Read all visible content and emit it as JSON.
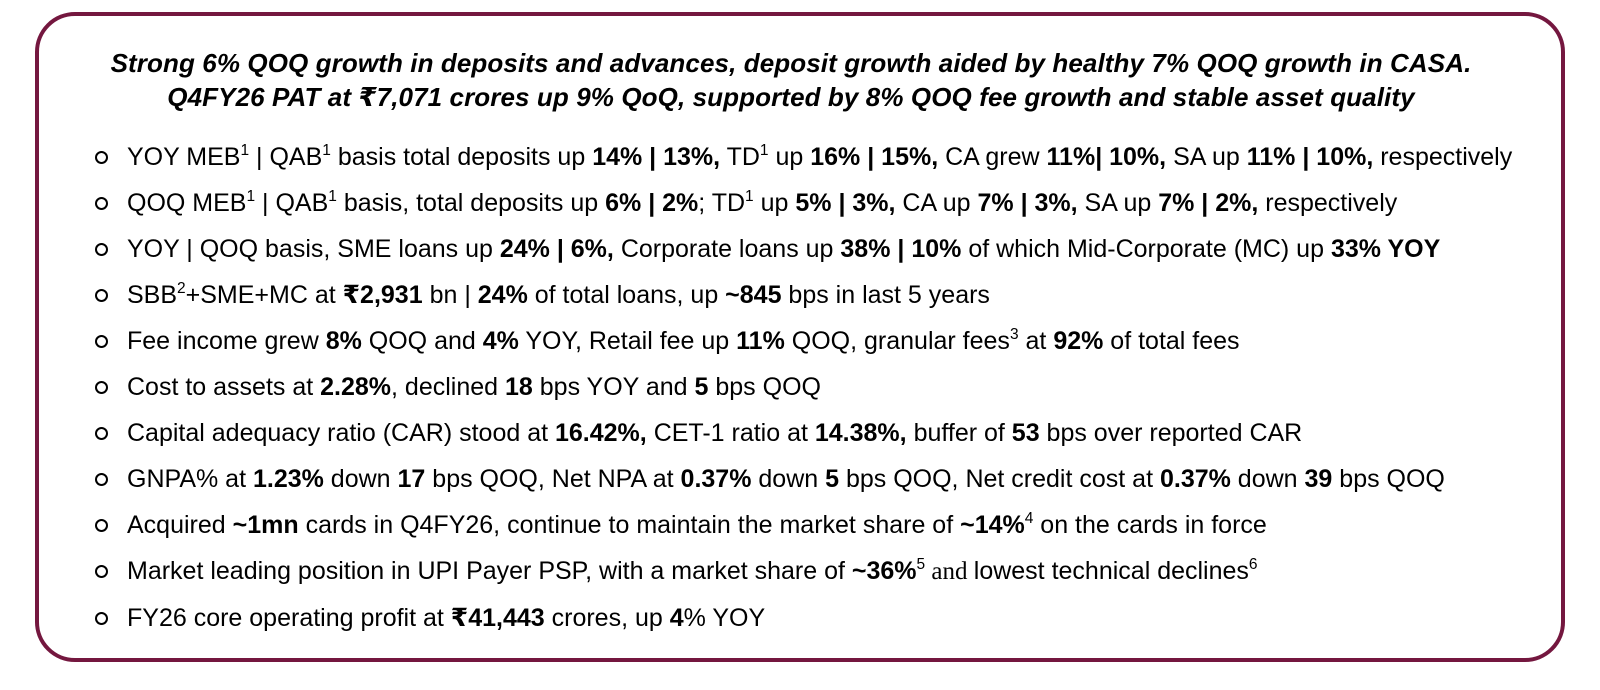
{
  "slide": {
    "border_color": "#74173f",
    "text_color": "#000000",
    "title": {
      "line1": "Strong 6% QOQ growth in deposits and advances, deposit growth aided by healthy 7% QOQ growth in CASA.",
      "line2": "Q4FY26 PAT at ₹7,071 crores up 9% QoQ, supported by 8% QOQ fee growth and stable asset quality"
    },
    "bullets": [
      {
        "segments": [
          {
            "t": "YOY MEB"
          },
          {
            "t": "1",
            "sup": true
          },
          {
            "t": " | QAB"
          },
          {
            "t": "1",
            "sup": true
          },
          {
            "t": " basis total deposits up "
          },
          {
            "t": "14% | 13%,",
            "b": true
          },
          {
            "t": " TD"
          },
          {
            "t": "1",
            "sup": true
          },
          {
            "t": " up "
          },
          {
            "t": "16% | 15%,",
            "b": true
          },
          {
            "t": " CA grew "
          },
          {
            "t": "11%| 10%,",
            "b": true
          },
          {
            "t": " SA up "
          },
          {
            "t": "11% | 10%,",
            "b": true
          },
          {
            "t": " respectively"
          }
        ]
      },
      {
        "segments": [
          {
            "t": "QOQ MEB"
          },
          {
            "t": "1",
            "sup": true
          },
          {
            "t": " | QAB"
          },
          {
            "t": "1",
            "sup": true
          },
          {
            "t": " basis, total deposits up "
          },
          {
            "t": "6% | 2%",
            "b": true
          },
          {
            "t": "; TD"
          },
          {
            "t": "1",
            "sup": true
          },
          {
            "t": " up "
          },
          {
            "t": "5% | 3%,",
            "b": true
          },
          {
            "t": " CA up "
          },
          {
            "t": "7% | 3%,",
            "b": true
          },
          {
            "t": " SA up "
          },
          {
            "t": "7% | 2%,",
            "b": true
          },
          {
            "t": " respectively"
          }
        ]
      },
      {
        "segments": [
          {
            "t": "YOY | QOQ basis, SME loans up "
          },
          {
            "t": "24% | 6%,",
            "b": true
          },
          {
            "t": " Corporate loans up "
          },
          {
            "t": "38% | 10%",
            "b": true
          },
          {
            "t": " of which Mid-Corporate (MC) up "
          },
          {
            "t": "33% YOY",
            "b": true
          }
        ]
      },
      {
        "segments": [
          {
            "t": "SBB"
          },
          {
            "t": "2",
            "sup": true
          },
          {
            "t": "+SME+MC at "
          },
          {
            "t": "₹2,931",
            "b": true
          },
          {
            "t": " bn | "
          },
          {
            "t": "24%",
            "b": true
          },
          {
            "t": " of total loans, up "
          },
          {
            "t": "~845",
            "b": true
          },
          {
            "t": " bps in last 5 years"
          }
        ]
      },
      {
        "segments": [
          {
            "t": "Fee income grew "
          },
          {
            "t": "8%",
            "b": true
          },
          {
            "t": " QOQ and "
          },
          {
            "t": "4%",
            "b": true
          },
          {
            "t": " YOY, Retail fee up "
          },
          {
            "t": "11%",
            "b": true
          },
          {
            "t": " QOQ, granular fees"
          },
          {
            "t": "3",
            "sup": true
          },
          {
            "t": " at "
          },
          {
            "t": "92%",
            "b": true
          },
          {
            "t": " of total fees"
          }
        ]
      },
      {
        "segments": [
          {
            "t": "Cost to assets at "
          },
          {
            "t": "2.28%",
            "b": true
          },
          {
            "t": ", declined "
          },
          {
            "t": "18",
            "b": true
          },
          {
            "t": " bps YOY and "
          },
          {
            "t": "5",
            "b": true
          },
          {
            "t": " bps QOQ"
          }
        ]
      },
      {
        "segments": [
          {
            "t": "Capital adequacy ratio (CAR) stood at "
          },
          {
            "t": "16.42%,",
            "b": true
          },
          {
            "t": " CET-1 ratio at "
          },
          {
            "t": "14.38%,",
            "b": true
          },
          {
            "t": " buffer of "
          },
          {
            "t": "53",
            "b": true
          },
          {
            "t": " bps over reported CAR"
          }
        ]
      },
      {
        "segments": [
          {
            "t": "GNPA% at "
          },
          {
            "t": "1.23%",
            "b": true
          },
          {
            "t": " down "
          },
          {
            "t": "17",
            "b": true
          },
          {
            "t": " bps QOQ, Net NPA at "
          },
          {
            "t": "0.37%",
            "b": true
          },
          {
            "t": " down "
          },
          {
            "t": "5",
            "b": true
          },
          {
            "t": " bps QOQ, Net credit cost at "
          },
          {
            "t": "0.37%",
            "b": true
          },
          {
            "t": " down "
          },
          {
            "t": "39",
            "b": true
          },
          {
            "t": " bps QOQ"
          }
        ]
      },
      {
        "segments": [
          {
            "t": "Acquired "
          },
          {
            "t": "~1mn",
            "b": true
          },
          {
            "t": " cards in Q4FY26, continue to maintain the market share of "
          },
          {
            "t": "~14%",
            "b": true
          },
          {
            "t": "4",
            "sup": true
          },
          {
            "t": " on the cards in force"
          }
        ]
      },
      {
        "segments": [
          {
            "t": "Market leading position in UPI Payer PSP, with a market share of "
          },
          {
            "t": "~36%",
            "b": true
          },
          {
            "t": "5",
            "sup": true
          },
          {
            "t": " and ",
            "serif": true
          },
          {
            "t": "lowest technical declines"
          },
          {
            "t": "6",
            "sup": true
          }
        ]
      },
      {
        "segments": [
          {
            "t": "FY26 core operating profit at "
          },
          {
            "t": "₹41,443",
            "b": true
          },
          {
            "t": " crores, up "
          },
          {
            "t": "4",
            "b": true
          },
          {
            "t": "% YOY"
          }
        ]
      }
    ]
  }
}
